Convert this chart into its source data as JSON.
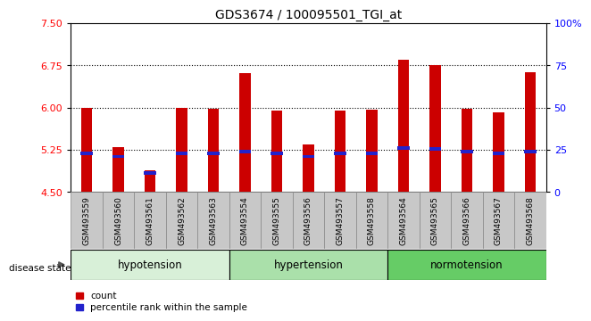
{
  "title": "GDS3674 / 100095501_TGI_at",
  "samples": [
    "GSM493559",
    "GSM493560",
    "GSM493561",
    "GSM493562",
    "GSM493563",
    "GSM493554",
    "GSM493555",
    "GSM493556",
    "GSM493557",
    "GSM493558",
    "GSM493564",
    "GSM493565",
    "GSM493566",
    "GSM493567",
    "GSM493568"
  ],
  "count_values": [
    6.0,
    5.3,
    4.88,
    6.0,
    5.98,
    6.62,
    5.94,
    5.35,
    5.95,
    5.97,
    6.85,
    6.75,
    5.98,
    5.92,
    6.63
  ],
  "percentile_values": [
    5.19,
    5.13,
    4.84,
    5.19,
    5.19,
    5.22,
    5.19,
    5.13,
    5.19,
    5.19,
    5.28,
    5.27,
    5.22,
    5.19,
    5.22
  ],
  "groups": [
    {
      "label": "hypotension",
      "start": 0,
      "end": 5
    },
    {
      "label": "hypertension",
      "start": 5,
      "end": 10
    },
    {
      "label": "normotension",
      "start": 10,
      "end": 15
    }
  ],
  "group_colors": [
    "#d8f0d8",
    "#aae0aa",
    "#66cc66"
  ],
  "y_min": 4.5,
  "y_max": 7.5,
  "y_ticks_left": [
    4.5,
    5.25,
    6.0,
    6.75,
    7.5
  ],
  "y_ticks_right": [
    0,
    25,
    50,
    75,
    100
  ],
  "bar_color": "#cc0000",
  "percentile_color": "#2222cc",
  "bar_width": 0.35,
  "dotted_lines": [
    5.25,
    6.0,
    6.75
  ],
  "legend_count": "count",
  "legend_percentile": "percentile rank within the sample",
  "disease_state_label": "disease state",
  "background_color": "#ffffff",
  "plot_bg": "#ffffff",
  "tick_label_bg": "#c8c8c8"
}
